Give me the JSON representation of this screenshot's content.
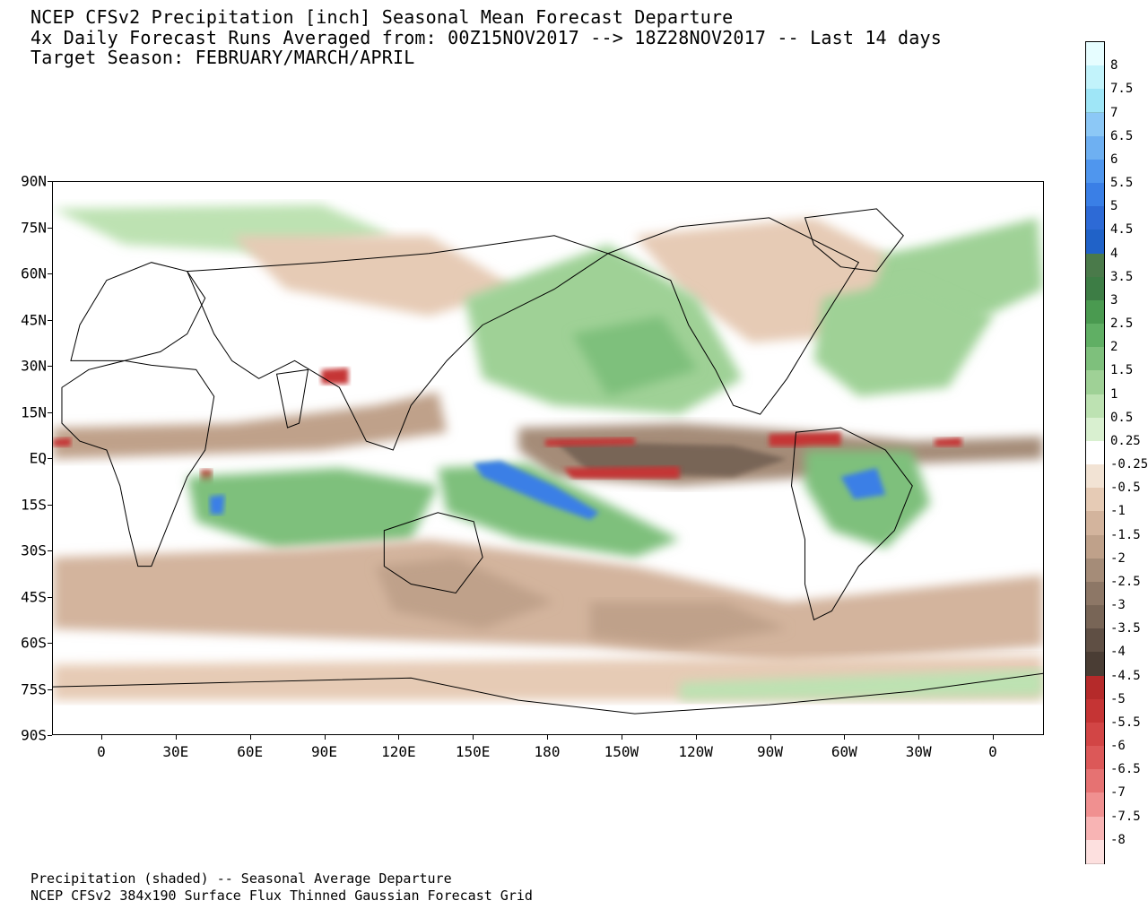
{
  "header": {
    "line1": "NCEP CFSv2 Precipitation [inch] Seasonal Mean Forecast Departure",
    "line2": "4x Daily Forecast Runs Averaged from: 00Z15NOV2017 --> 18Z28NOV2017 -- Last 14 days",
    "line3": "Target Season: FEBRUARY/MARCH/APRIL"
  },
  "footer": {
    "line1": "Precipitation (shaded) -- Seasonal Average Departure",
    "line2": "NCEP CFSv2 384x190 Surface Flux Thinned Gaussian Forecast Grid"
  },
  "map": {
    "lat_labels": [
      "90N",
      "75N",
      "60N",
      "45N",
      "30N",
      "15N",
      "EQ",
      "15S",
      "30S",
      "45S",
      "60S",
      "75S",
      "90S"
    ],
    "lon_labels": [
      "0",
      "30E",
      "60E",
      "90E",
      "120E",
      "150E",
      "180",
      "150W",
      "120W",
      "90W",
      "60W",
      "30W",
      "0"
    ],
    "features": [
      {
        "name": "pacific-dry-band",
        "kind": "dry"
      },
      {
        "name": "western-pacific-wet-band",
        "kind": "wet"
      },
      {
        "name": "indian-ocean-wet-band",
        "kind": "wet"
      },
      {
        "name": "north-pacific-wet-area",
        "kind": "wet"
      },
      {
        "name": "amazon-wet-area",
        "kind": "wet"
      },
      {
        "name": "atlantic-dry-band",
        "kind": "dry"
      }
    ]
  },
  "colorbar": {
    "labels": [
      "8",
      "7.5",
      "7",
      "6.5",
      "6",
      "5.5",
      "5",
      "4.5",
      "4",
      "3.5",
      "3",
      "2.5",
      "2",
      "1.5",
      "1",
      "0.5",
      "0.25",
      "-0.25",
      "-0.5",
      "-1",
      "-1.5",
      "-2",
      "-2.5",
      "-3",
      "-3.5",
      "-4",
      "-4.5",
      "-5",
      "-5.5",
      "-6",
      "-6.5",
      "-7",
      "-7.5",
      "-8"
    ],
    "colors": [
      "#e6fdff",
      "#c2f3fb",
      "#9fe6f7",
      "#8cc8f6",
      "#6eb0f2",
      "#4f96ee",
      "#3a7fe6",
      "#2d6ad6",
      "#2062c8",
      "#4a7a4a",
      "#3d7d45",
      "#4a9a50",
      "#60af64",
      "#7ec07c",
      "#9fd196",
      "#bde2b2",
      "#d9f0d0",
      "#ffffff",
      "#f2e3d4",
      "#e6cbb5",
      "#d3b49d",
      "#bfa18a",
      "#a58c78",
      "#8d7766",
      "#786556",
      "#5f4f44",
      "#4a3d34",
      "#b52a2a",
      "#c53434",
      "#d24545",
      "#dc5858",
      "#e67272",
      "#f09090",
      "#f8b4b4",
      "#fde0df"
    ]
  }
}
